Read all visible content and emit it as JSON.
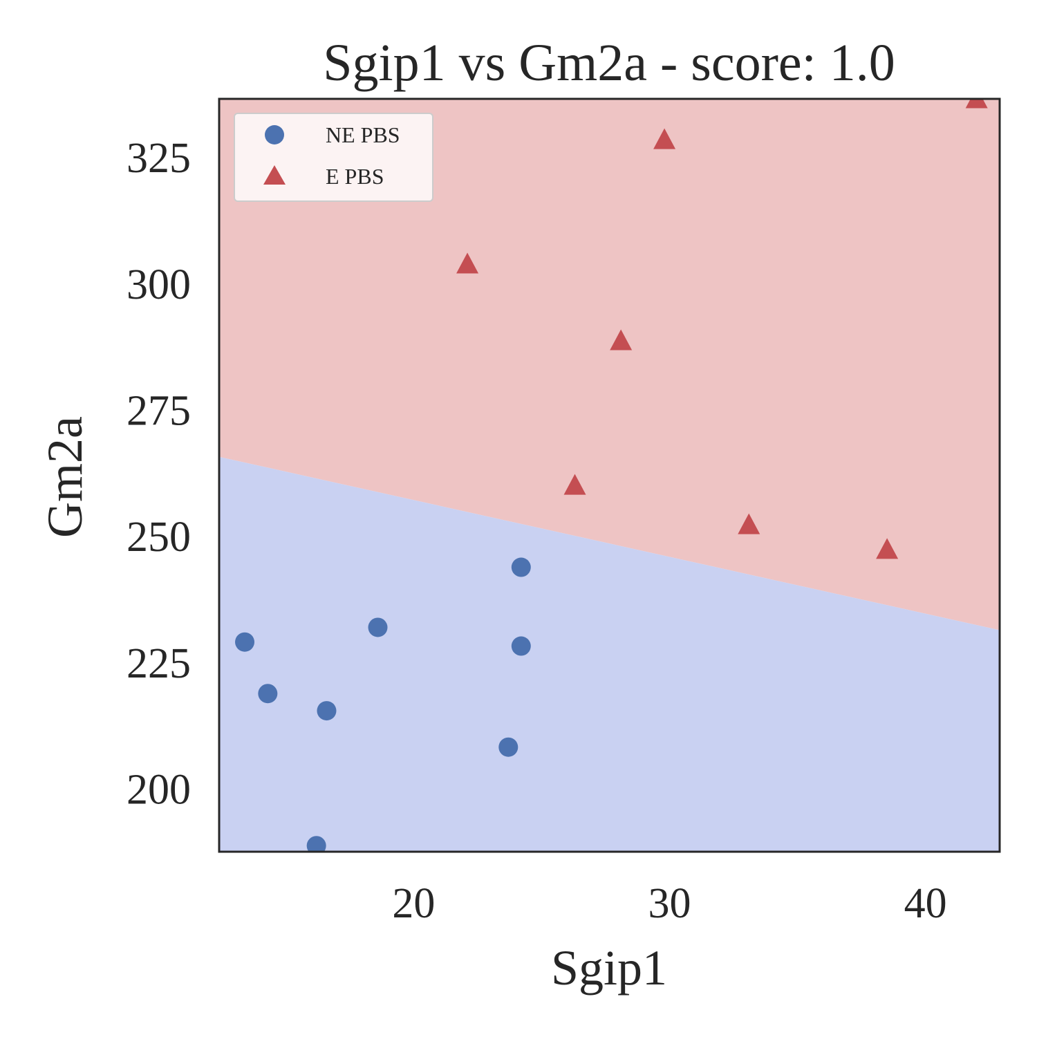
{
  "chart_data": {
    "type": "scatter",
    "title": "Sgip1 vs Gm2a - score: 1.0",
    "xlabel": "Sgip1",
    "ylabel": "Gm2a",
    "xlim": [
      12.4,
      42.9
    ],
    "ylim": [
      187.5,
      336.5
    ],
    "xticks": [
      20,
      30,
      40
    ],
    "yticks": [
      200,
      225,
      250,
      275,
      300,
      325
    ],
    "grid": false,
    "legend_position": "top-left",
    "decision_boundary": {
      "from": [
        12.4,
        265.8
      ],
      "to": [
        42.9,
        231.2
      ],
      "above_class": "E PBS",
      "below_class": "NE PBS",
      "above_color": "#eec4c4",
      "below_color": "#c9d1f2"
    },
    "series": [
      {
        "name": "NE PBS",
        "marker": "circle",
        "color": "#4c72b0",
        "points": [
          [
            13.4,
            229.0
          ],
          [
            14.3,
            218.8
          ],
          [
            16.2,
            188.7
          ],
          [
            16.6,
            215.4
          ],
          [
            18.6,
            231.9
          ],
          [
            23.7,
            208.2
          ],
          [
            24.2,
            243.8
          ],
          [
            24.2,
            228.2
          ]
        ]
      },
      {
        "name": "E PBS",
        "marker": "triangle",
        "color": "#c44e52",
        "points": [
          [
            22.1,
            303.6
          ],
          [
            26.3,
            259.8
          ],
          [
            28.1,
            288.4
          ],
          [
            29.8,
            328.2
          ],
          [
            33.1,
            252.0
          ],
          [
            38.5,
            247.1
          ],
          [
            42.0,
            336.3
          ]
        ]
      }
    ]
  }
}
